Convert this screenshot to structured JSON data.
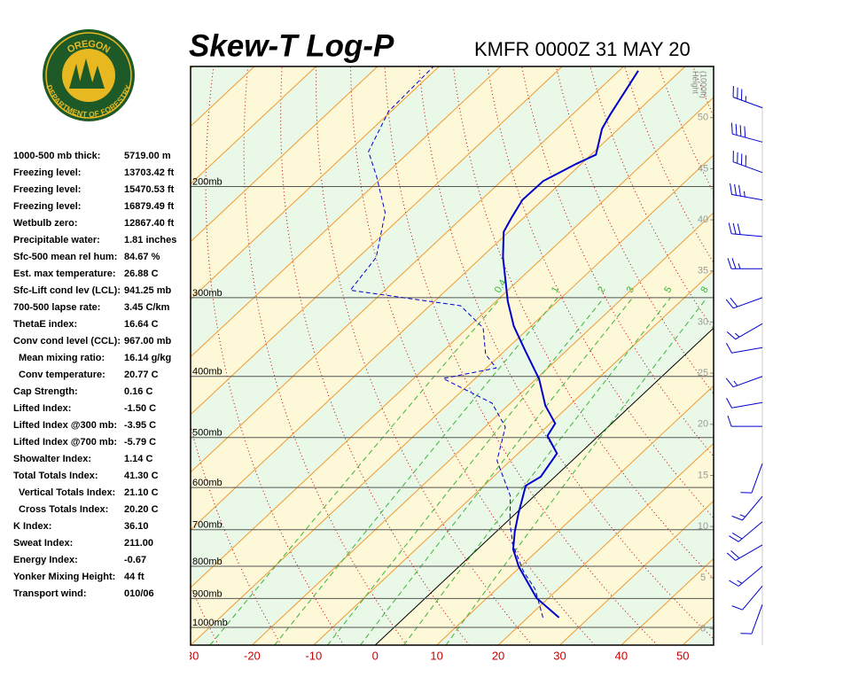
{
  "logo": {
    "top": "OREGON",
    "bottom": "DEPARTMENT OF FORESTRY"
  },
  "stats": [
    [
      "1000-500 mb thick:",
      "5719.00 m"
    ],
    [
      "Freezing level:",
      "13703.42 ft"
    ],
    [
      "Freezing level:",
      "15470.53 ft"
    ],
    [
      "Freezing level:",
      "16879.49 ft"
    ],
    [
      "Wetbulb zero:",
      "12867.40 ft"
    ],
    [
      "Precipitable water:",
      "1.81 inches"
    ],
    [
      "Sfc-500 mean rel hum:",
      "84.67 %"
    ],
    [
      "Est. max temperature:",
      "26.88 C"
    ],
    [
      "Sfc-Lift cond lev (LCL):",
      "941.25 mb"
    ],
    [
      "700-500 lapse rate:",
      "3.45 C/km"
    ],
    [
      "ThetaE index:",
      "16.64 C"
    ],
    [
      "Conv cond level (CCL):",
      "967.00 mb"
    ],
    [
      "Mean mixing ratio:",
      "16.14 g/kg"
    ],
    [
      "Conv temperature:",
      "20.77 C"
    ],
    [
      "Cap Strength:",
      "0.16 C"
    ],
    [
      "Lifted Index:",
      "-1.50 C"
    ],
    [
      "Lifted Index @300 mb:",
      "-3.95 C"
    ],
    [
      "Lifted Index @700 mb:",
      "-5.79 C"
    ],
    [
      "Showalter Index:",
      "1.14 C"
    ],
    [
      "Total Totals Index:",
      "41.30 C"
    ],
    [
      "Vertical Totals Index:",
      "21.10 C"
    ],
    [
      "Cross Totals Index:",
      "20.20 C"
    ],
    [
      "K Index:",
      "36.10"
    ],
    [
      "Sweat Index:",
      "211.00"
    ],
    [
      "Energy Index:",
      "-0.67"
    ],
    [
      "Yonker Mixing Height:",
      "44 ft"
    ],
    [
      "Transport wind:",
      "010/06"
    ]
  ],
  "chart_data": {
    "type": "skewt",
    "title": "Skew-T Log-P",
    "subtitle": "KMFR 0000Z 31 MAY 20",
    "xlim": [
      -30,
      55
    ],
    "xticks": [
      -30,
      -20,
      -10,
      0,
      10,
      20,
      30,
      40,
      50
    ],
    "ylim": [
      1067,
      129
    ],
    "yticks": [
      {
        "value": 1000,
        "label": "1000mb"
      },
      {
        "value": 900,
        "label": "900mb"
      },
      {
        "value": 800,
        "label": "800mb"
      },
      {
        "value": 700,
        "label": "700mb"
      },
      {
        "value": 600,
        "label": "600mb"
      },
      {
        "value": 500,
        "label": "500mb"
      },
      {
        "value": 400,
        "label": "400mb"
      },
      {
        "value": 300,
        "label": "300mb"
      },
      {
        "value": 200,
        "label": "200mb"
      }
    ],
    "y2label": [
      "Height",
      "(1000ft)"
    ],
    "y2lim": [
      -1.6,
      55
    ],
    "y2ticks": [
      0,
      5,
      10,
      15,
      20,
      25,
      30,
      35,
      40,
      45,
      50
    ],
    "mixing_ratios": [
      0.4,
      1,
      2,
      3,
      5,
      8
    ],
    "temperature": {
      "color": "#0000cc",
      "pressure": [
        965,
        899,
        802,
        752,
        705,
        657,
        596,
        577,
        530,
        497,
        475,
        445,
        404,
        363,
        333,
        304,
        259,
        236,
        224,
        210,
        196,
        184,
        178,
        162,
        154,
        131
      ],
      "values": [
        25.1,
        18.1,
        9.8,
        5.8,
        3.0,
        0.3,
        -3.2,
        -2.3,
        -3.7,
        -8.3,
        -9.2,
        -13.9,
        -19.5,
        -26.9,
        -32.8,
        -38.1,
        -46.5,
        -50.8,
        -52,
        -53.3,
        -53.2,
        -50.8,
        -49.2,
        -52.7,
        -53.8,
        -56.9
      ]
    },
    "dewpoint": {
      "color": "#0000cc",
      "pressure": [
        965,
        870,
        815,
        740,
        683,
        619,
        544,
        481,
        441,
        403,
        388,
        369,
        335,
        309,
        292,
        259,
        220,
        193,
        176,
        152,
        129
      ],
      "values": [
        22.5,
        16.3,
        11.3,
        5,
        0.7,
        -3.9,
        -12.2,
        -16.7,
        -23,
        -35.2,
        -28.4,
        -32.5,
        -37.5,
        -45,
        -65.6,
        -67.1,
        -73.4,
        -81,
        -86.7,
        -90.4,
        -90.9
      ]
    },
    "winds": [
      {
        "p": 150,
        "dir": 290,
        "spd": 35
      },
      {
        "p": 170,
        "dir": 285,
        "spd": 40
      },
      {
        "p": 190,
        "dir": 290,
        "spd": 40
      },
      {
        "p": 210,
        "dir": 280,
        "spd": 35
      },
      {
        "p": 240,
        "dir": 275,
        "spd": 30
      },
      {
        "p": 270,
        "dir": 270,
        "spd": 25
      },
      {
        "p": 300,
        "dir": 250,
        "spd": 20
      },
      {
        "p": 330,
        "dir": 240,
        "spd": 15
      },
      {
        "p": 360,
        "dir": 260,
        "spd": 10
      },
      {
        "p": 400,
        "dir": 250,
        "spd": 15
      },
      {
        "p": 440,
        "dir": 260,
        "spd": 10
      },
      {
        "p": 480,
        "dir": 270,
        "spd": 10
      },
      {
        "p": 550,
        "dir": 200,
        "spd": 10
      },
      {
        "p": 620,
        "dir": 220,
        "spd": 15
      },
      {
        "p": 680,
        "dir": 230,
        "spd": 20
      },
      {
        "p": 740,
        "dir": 240,
        "spd": 20
      },
      {
        "p": 800,
        "dir": 230,
        "spd": 15
      },
      {
        "p": 860,
        "dir": 220,
        "spd": 10
      },
      {
        "p": 920,
        "dir": 200,
        "spd": 10
      }
    ]
  }
}
